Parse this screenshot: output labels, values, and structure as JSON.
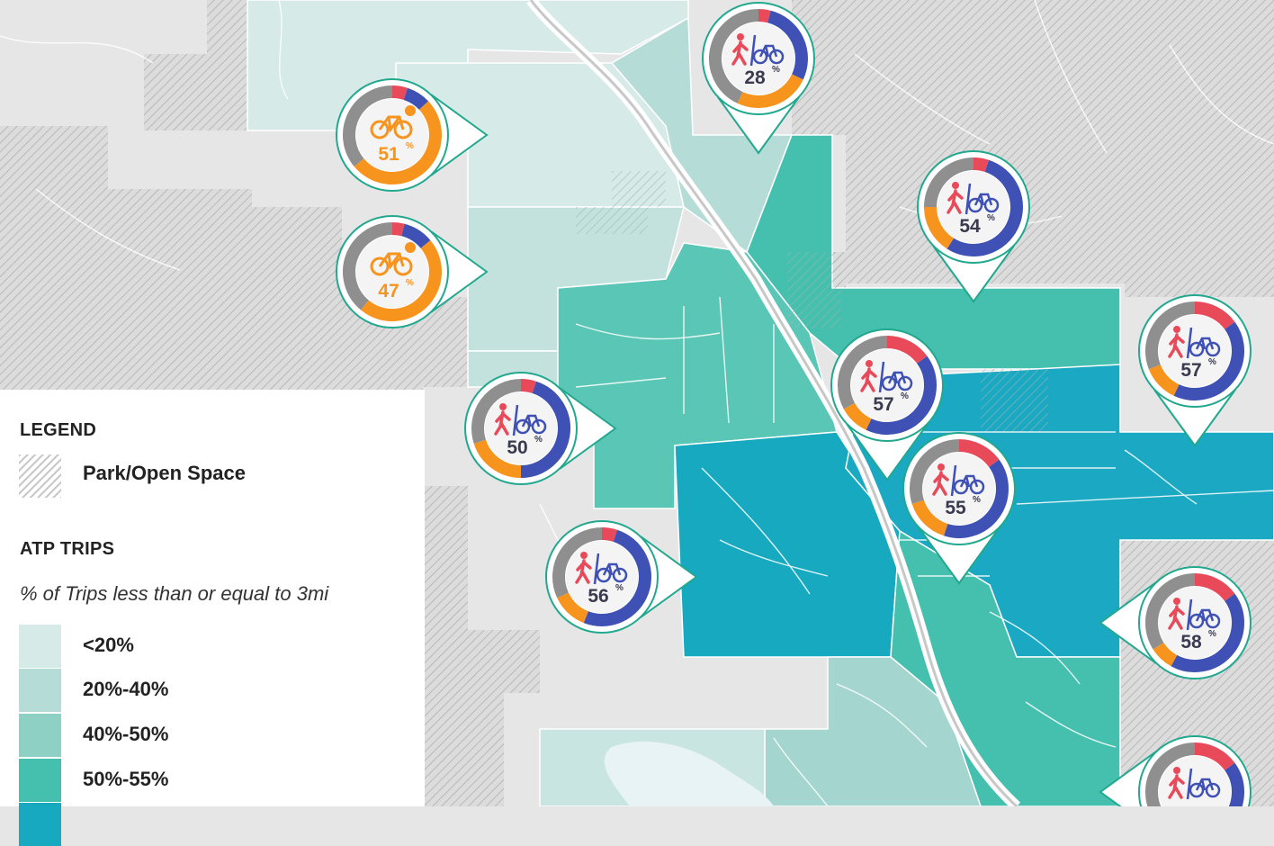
{
  "legend": {
    "title": "LEGEND",
    "park_label": "Park/Open Space",
    "atp_title": "ATP TRIPS",
    "subtitle": "% of Trips less than or equal to 3mi",
    "classes": [
      {
        "label": "<20%",
        "color": "#d6eae7"
      },
      {
        "label": "20%-40%",
        "color": "#b5dcd6"
      },
      {
        "label": "40%-50%",
        "color": "#8fd0c5"
      },
      {
        "label": "50%-55%",
        "color": "#45bfae"
      },
      {
        "label": "",
        "color": "#16a9bf"
      }
    ]
  },
  "colors": {
    "walk": "#e84a5a",
    "bike": "#3f51b5",
    "ebike": "#f7941d",
    "other": "#8f8f8f",
    "pin_border": "#22a88f",
    "pct_text": "#3a3a50"
  },
  "pins": [
    {
      "value": "28",
      "icon": "walk-bike-icon",
      "shares": {
        "walk": 0.04,
        "bike": 0.28,
        "ebike": 0.25,
        "other": 0.43
      }
    },
    {
      "value": "51",
      "icon": "ebike-icon",
      "shares": {
        "walk": 0.05,
        "bike": 0.08,
        "ebike": 0.51,
        "other": 0.36
      }
    },
    {
      "value": "47",
      "icon": "ebike-icon",
      "shares": {
        "walk": 0.04,
        "bike": 0.1,
        "ebike": 0.47,
        "other": 0.39
      }
    },
    {
      "value": "54",
      "icon": "walk-bike-icon",
      "shares": {
        "walk": 0.05,
        "bike": 0.54,
        "ebike": 0.16,
        "other": 0.25
      }
    },
    {
      "value": "57",
      "icon": "walk-bike-icon",
      "shares": {
        "walk": 0.15,
        "bike": 0.42,
        "ebike": 0.1,
        "other": 0.33
      }
    },
    {
      "value": "57",
      "icon": "walk-bike-icon",
      "shares": {
        "walk": 0.15,
        "bike": 0.42,
        "ebike": 0.12,
        "other": 0.31
      }
    },
    {
      "value": "50",
      "icon": "walk-bike-icon",
      "shares": {
        "walk": 0.05,
        "bike": 0.45,
        "ebike": 0.2,
        "other": 0.3
      }
    },
    {
      "value": "55",
      "icon": "walk-bike-icon",
      "shares": {
        "walk": 0.15,
        "bike": 0.4,
        "ebike": 0.15,
        "other": 0.3
      }
    },
    {
      "value": "56",
      "icon": "walk-bike-icon",
      "shares": {
        "walk": 0.05,
        "bike": 0.51,
        "ebike": 0.12,
        "other": 0.32
      }
    },
    {
      "value": "58",
      "icon": "walk-bike-icon",
      "shares": {
        "walk": 0.15,
        "bike": 0.43,
        "ebike": 0.08,
        "other": 0.34
      }
    },
    {
      "value": "",
      "icon": "walk-bike-icon",
      "shares": {
        "walk": 0.15,
        "bike": 0.43,
        "ebike": 0.1,
        "other": 0.32
      }
    }
  ]
}
